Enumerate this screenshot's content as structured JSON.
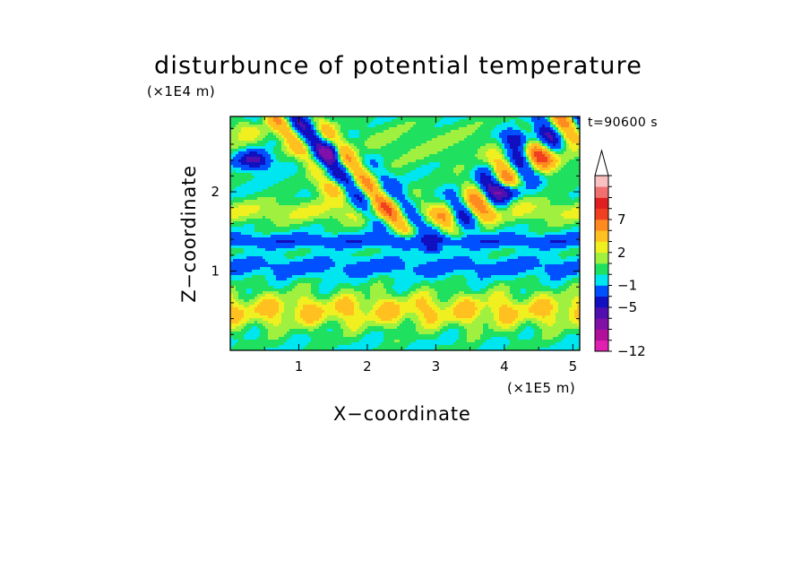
{
  "chart_data": {
    "type": "heatmap",
    "title": "disturbunce of potential temperature",
    "time_label": "t=90600 s",
    "xlabel": "X−coordinate",
    "ylabel": "Z−coordinate",
    "x_unit": "(×1E5 m)",
    "y_unit": "(×1E4 m)",
    "xlim": [
      0,
      5.1
    ],
    "ylim": [
      0,
      2.95
    ],
    "x_ticks": [
      "1",
      "2",
      "3",
      "4",
      "5"
    ],
    "y_ticks": [
      "1",
      "2"
    ],
    "colorbar": {
      "levels": [
        -12,
        -10,
        -7,
        -5,
        -3,
        -1,
        0,
        1,
        2,
        3,
        5,
        7,
        10,
        12
      ],
      "colors": [
        "#e020b0",
        "#b0109a",
        "#8010a8",
        "#5010b0",
        "#1010c0",
        "#0050ff",
        "#00e6f0",
        "#20e060",
        "#a0f040",
        "#f0f020",
        "#ffc020",
        "#ff8a20",
        "#f04020",
        "#e02020",
        "#f07070",
        "#f8c0c0"
      ],
      "tick_labels": [
        "−12",
        "−5",
        "−1",
        "2",
        "7"
      ],
      "extend": "max"
    }
  }
}
